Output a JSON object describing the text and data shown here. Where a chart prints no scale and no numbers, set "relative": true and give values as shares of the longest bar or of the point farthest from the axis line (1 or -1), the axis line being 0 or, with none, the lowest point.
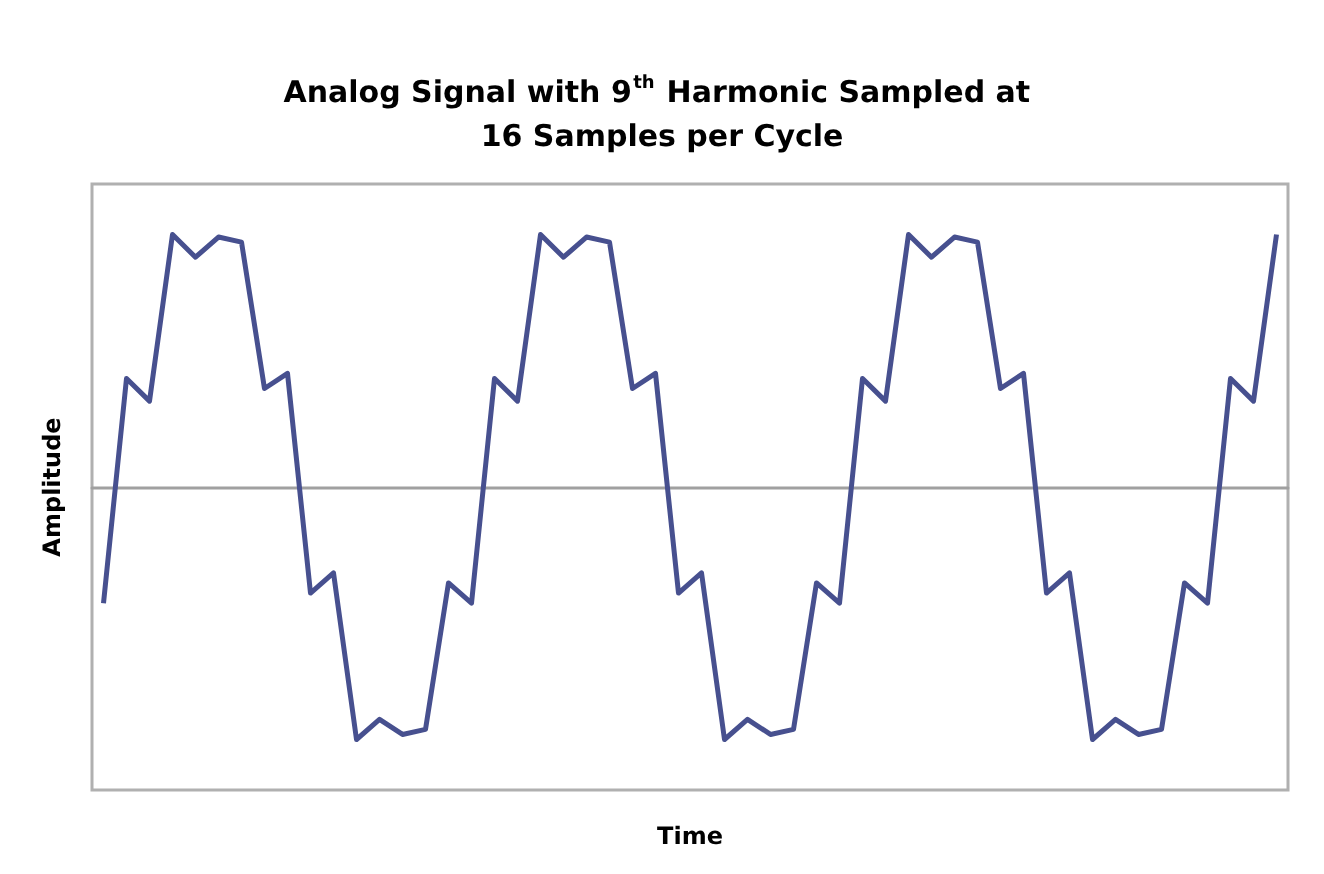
{
  "chart_data": {
    "type": "line",
    "title": "Analog Signal with 9$^{th}$ Harmonic Sampled at 16 Samples per Cycle",
    "xlabel": "Time",
    "ylabel": "Amplitude",
    "relative": true,
    "marker": "none",
    "categories": [
      null,
      null,
      null,
      null,
      null,
      null,
      null,
      null,
      null,
      null,
      null,
      null,
      null,
      null,
      null,
      null,
      null,
      null,
      null,
      null,
      null,
      null,
      null,
      null,
      null,
      null,
      null,
      null,
      null,
      null,
      null,
      null,
      null,
      null,
      null,
      null,
      null,
      null,
      null,
      null,
      null,
      null,
      null,
      null,
      null,
      null,
      null,
      null,
      null,
      null,
      null,
      null
    ],
    "series": [
      {
        "color": "#47508f",
        "values": [
          -0.46,
          0.43,
          0.34,
          1,
          0.91,
          0.99,
          0.97,
          0.39,
          0.45,
          -0.42,
          -0.34,
          -1,
          -0.92,
          -0.98,
          -0.96,
          -0.38,
          -0.46,
          0.43,
          0.34,
          1,
          0.91,
          0.99,
          0.97,
          0.39,
          0.45,
          -0.42,
          -0.34,
          -1,
          -0.92,
          -0.98,
          -0.96,
          -0.38,
          -0.46,
          0.43,
          0.34,
          1,
          0.91,
          0.99,
          0.97,
          0.39,
          0.45,
          -0.42,
          -0.34,
          -1,
          -0.92,
          -0.98,
          -0.96,
          -0.38,
          -0.46,
          0.43,
          0.34,
          1
        ]
      }
    ]
  }
}
